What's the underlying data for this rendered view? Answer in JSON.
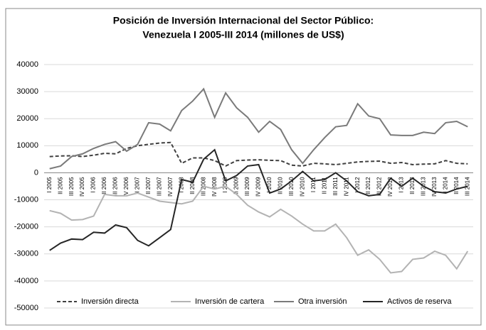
{
  "chart_data": {
    "type": "line",
    "title": [
      "Posición de Inversión Internacional del Sector Público:",
      "Venezuela I 2005-III 2014 (millones de US$)"
    ],
    "categories": [
      "I 2005",
      "II 2005",
      "III 2005",
      "IV 2005",
      "I 2006",
      "II 2006",
      "III 2006",
      "IV 2006",
      "I 2007",
      "II 2007",
      "III 2007",
      "IV 2007",
      "I 2008",
      "II 2008",
      "III 2008",
      "IV 2008",
      "I 2009",
      "II 2009",
      "III 2009",
      "IV 2009",
      "I 2010",
      "II 2010",
      "III 2010",
      "IV 2010",
      "I 2011",
      "II 2011",
      "III 2011",
      "IV 2011",
      "I 2012",
      "II 2012",
      "III 2012",
      "IV 2012",
      "I 2013",
      "II 2013",
      "III 2013",
      "IV 2013",
      "I 2014",
      "II 2014",
      "III 2014"
    ],
    "series": [
      {
        "name": "Inversión directa",
        "color": "#404040",
        "dash": true,
        "values": [
          6000,
          6200,
          6300,
          6000,
          6500,
          7200,
          7000,
          9000,
          10000,
          10500,
          11000,
          11200,
          3500,
          5500,
          5500,
          4500,
          2500,
          4500,
          4700,
          4800,
          4600,
          4500,
          2800,
          2500,
          3500,
          3300,
          3000,
          3500,
          4000,
          4200,
          4300,
          3500,
          3800,
          3000,
          3200,
          3300,
          4500,
          3500,
          3300
        ]
      },
      {
        "name": "Inversión de cartera",
        "color": "#b3b3b3",
        "dash": false,
        "values": [
          -14000,
          -15000,
          -17500,
          -17300,
          -16000,
          -8000,
          -8500,
          -8500,
          -7500,
          -9000,
          -10500,
          -11000,
          -11500,
          -10500,
          -5000,
          -6000,
          -5000,
          -8000,
          -12000,
          -14500,
          -16300,
          -13500,
          -16000,
          -19000,
          -21500,
          -21500,
          -19000,
          -24000,
          -30500,
          -28500,
          -32000,
          -37000,
          -36500,
          -32000,
          -31500,
          -29000,
          -30500,
          -35500,
          -29000
        ]
      },
      {
        "name": "Otra inversión",
        "color": "#7a7a7a",
        "dash": false,
        "values": [
          1500,
          2500,
          6000,
          7000,
          9000,
          10500,
          11500,
          8000,
          10500,
          18500,
          18000,
          15500,
          23000,
          26500,
          31000,
          20500,
          29500,
          24000,
          20500,
          15000,
          19000,
          16000,
          8500,
          3500,
          8500,
          13000,
          17000,
          17500,
          25500,
          21000,
          20000,
          14000,
          13800,
          13800,
          15000,
          14500,
          18500,
          19000,
          17000
        ]
      },
      {
        "name": "Activos de reserva",
        "color": "#262626",
        "dash": false,
        "values": [
          -28700,
          -26000,
          -24500,
          -24700,
          -22000,
          -22300,
          -19300,
          -20300,
          -25000,
          -27000,
          -24000,
          -21000,
          -2500,
          -3500,
          5000,
          8500,
          -3000,
          -1000,
          2500,
          3000,
          -7500,
          -6000,
          -3000,
          500,
          -3000,
          -2500,
          0,
          -3000,
          -7000,
          -8500,
          -8000,
          -2000,
          -5000,
          -2000,
          -5000,
          -7000,
          -7500,
          -6000,
          -5000
        ]
      }
    ],
    "ylim": [
      -50000,
      40000
    ],
    "yticks": [
      -50000,
      -40000,
      -30000,
      -20000,
      -10000,
      0,
      10000,
      20000,
      30000,
      40000
    ],
    "grid": true
  }
}
